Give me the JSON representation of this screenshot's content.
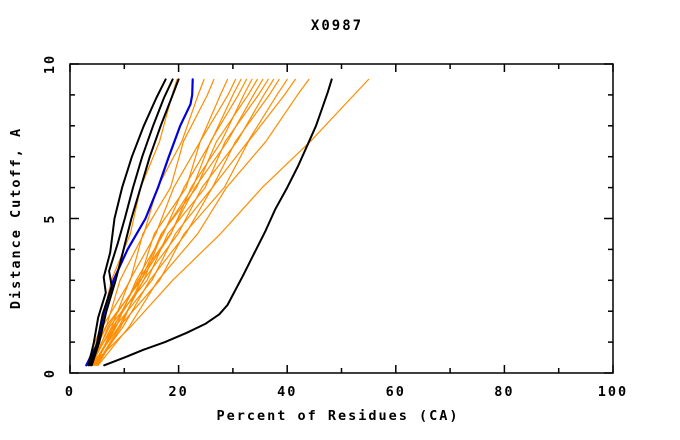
{
  "window": {
    "background": "#ffffff"
  },
  "chart": {
    "title": "X0987",
    "x_axis_label": "Percent of Residues (CA)",
    "y_axis_label": "Distance Cutoff, A"
  },
  "chart_data": {
    "type": "line",
    "title": "X0987",
    "xlabel": "Percent of Residues (CA)",
    "ylabel": "Distance Cutoff, A",
    "xlim": [
      0,
      100
    ],
    "ylim": [
      0,
      10
    ],
    "x_major_ticks": [
      0,
      20,
      40,
      60,
      80,
      100
    ],
    "x_minor_ticks": [
      10,
      30,
      50,
      70,
      90
    ],
    "y_major_ticks": [
      0,
      5,
      10
    ],
    "y_minor_ticks": [
      1,
      2,
      3,
      4,
      6,
      7,
      8,
      9
    ],
    "grid": "off",
    "legend": "none",
    "colors": {
      "black": "#000000",
      "blue": "#0000dd",
      "orange": "#ff8c00",
      "frame": "#000000"
    },
    "series": [
      {
        "name": "orange-01",
        "color": "#ff8c00",
        "width": 1.2,
        "points": [
          [
            3.0,
            0.25
          ],
          [
            5.7,
            1.5
          ],
          [
            7.6,
            3.0
          ],
          [
            11.1,
            4.5
          ],
          [
            13.0,
            6.0
          ],
          [
            16.5,
            7.5
          ],
          [
            18.8,
            9.0
          ],
          [
            19.7,
            9.5
          ]
        ]
      },
      {
        "name": "orange-02",
        "color": "#ff8c00",
        "width": 1.2,
        "points": [
          [
            3.3,
            0.25
          ],
          [
            6.7,
            1.5
          ],
          [
            9.2,
            3.0
          ],
          [
            13.6,
            4.5
          ],
          [
            16.1,
            6.0
          ],
          [
            20.6,
            7.5
          ],
          [
            23.6,
            9.0
          ],
          [
            24.7,
            9.5
          ]
        ]
      },
      {
        "name": "orange-03",
        "color": "#ff8c00",
        "width": 1.2,
        "points": [
          [
            3.6,
            0.25
          ],
          [
            6.0,
            1.5
          ],
          [
            11.1,
            3.0
          ],
          [
            13.4,
            4.5
          ],
          [
            18.5,
            6.0
          ],
          [
            20.9,
            7.5
          ],
          [
            25.3,
            9.0
          ],
          [
            26.5,
            9.5
          ]
        ]
      },
      {
        "name": "orange-04",
        "color": "#ff8c00",
        "width": 1.2,
        "points": [
          [
            3.9,
            0.25
          ],
          [
            7.7,
            1.5
          ],
          [
            11.0,
            3.0
          ],
          [
            15.8,
            4.5
          ],
          [
            19.1,
            6.0
          ],
          [
            24.0,
            7.5
          ],
          [
            27.7,
            9.0
          ],
          [
            29.0,
            9.5
          ]
        ]
      },
      {
        "name": "orange-05",
        "color": "#ff8c00",
        "width": 1.2,
        "points": [
          [
            4.2,
            0.25
          ],
          [
            7.0,
            1.5
          ],
          [
            12.8,
            3.0
          ],
          [
            15.5,
            4.5
          ],
          [
            21.4,
            6.0
          ],
          [
            24.0,
            7.5
          ],
          [
            29.1,
            9.0
          ],
          [
            30.5,
            9.5
          ]
        ]
      },
      {
        "name": "orange-06",
        "color": "#ff8c00",
        "width": 1.2,
        "points": [
          [
            4.5,
            0.25
          ],
          [
            8.5,
            1.5
          ],
          [
            12.2,
            3.0
          ],
          [
            17.2,
            4.5
          ],
          [
            21.0,
            6.0
          ],
          [
            26.0,
            7.5
          ],
          [
            30.0,
            9.0
          ],
          [
            31.5,
            9.5
          ]
        ]
      },
      {
        "name": "orange-07",
        "color": "#ff8c00",
        "width": 1.2,
        "points": [
          [
            4.8,
            0.25
          ],
          [
            7.9,
            1.5
          ],
          [
            13.6,
            3.0
          ],
          [
            16.9,
            4.5
          ],
          [
            22.6,
            6.0
          ],
          [
            25.9,
            7.5
          ],
          [
            31.0,
            9.0
          ],
          [
            32.5,
            9.5
          ]
        ]
      },
      {
        "name": "orange-08",
        "color": "#ff8c00",
        "width": 1.2,
        "points": [
          [
            5.1,
            0.25
          ],
          [
            9.4,
            1.5
          ],
          [
            13.0,
            3.0
          ],
          [
            18.6,
            4.5
          ],
          [
            22.3,
            6.0
          ],
          [
            27.9,
            7.5
          ],
          [
            32.0,
            9.0
          ],
          [
            33.5,
            9.5
          ]
        ]
      },
      {
        "name": "orange-09",
        "color": "#ff8c00",
        "width": 1.2,
        "points": [
          [
            3.1,
            0.25
          ],
          [
            6.6,
            1.5
          ],
          [
            13.1,
            3.0
          ],
          [
            16.8,
            4.5
          ],
          [
            23.3,
            6.0
          ],
          [
            27.0,
            7.5
          ],
          [
            32.8,
            9.0
          ],
          [
            34.5,
            9.5
          ]
        ]
      },
      {
        "name": "orange-10",
        "color": "#ff8c00",
        "width": 1.2,
        "points": [
          [
            3.4,
            0.25
          ],
          [
            8.1,
            1.5
          ],
          [
            12.5,
            3.0
          ],
          [
            18.5,
            4.5
          ],
          [
            23.0,
            6.0
          ],
          [
            29.0,
            7.5
          ],
          [
            33.8,
            9.0
          ],
          [
            35.5,
            9.5
          ]
        ]
      },
      {
        "name": "orange-11",
        "color": "#ff8c00",
        "width": 1.2,
        "points": [
          [
            3.7,
            0.25
          ],
          [
            7.3,
            1.5
          ],
          [
            14.2,
            3.0
          ],
          [
            18.0,
            4.5
          ],
          [
            24.9,
            6.0
          ],
          [
            28.6,
            7.5
          ],
          [
            34.7,
            9.0
          ],
          [
            36.5,
            9.5
          ]
        ]
      },
      {
        "name": "orange-12",
        "color": "#ff8c00",
        "width": 1.2,
        "points": [
          [
            4.0,
            0.25
          ],
          [
            9.0,
            1.5
          ],
          [
            13.5,
            3.0
          ],
          [
            19.9,
            4.5
          ],
          [
            24.3,
            6.0
          ],
          [
            30.8,
            7.5
          ],
          [
            35.7,
            9.0
          ],
          [
            37.5,
            9.5
          ]
        ]
      },
      {
        "name": "orange-13",
        "color": "#ff8c00",
        "width": 1.2,
        "points": [
          [
            4.3,
            0.25
          ],
          [
            8.3,
            1.5
          ],
          [
            15.1,
            3.0
          ],
          [
            19.4,
            4.5
          ],
          [
            26.2,
            6.0
          ],
          [
            30.5,
            7.5
          ],
          [
            36.7,
            9.0
          ],
          [
            38.5,
            9.5
          ]
        ]
      },
      {
        "name": "orange-14",
        "color": "#ff8c00",
        "width": 1.2,
        "points": [
          [
            4.6,
            0.25
          ],
          [
            9.8,
            1.5
          ],
          [
            14.7,
            3.0
          ],
          [
            21.3,
            4.5
          ],
          [
            26.2,
            6.0
          ],
          [
            32.8,
            7.5
          ],
          [
            38.1,
            9.0
          ],
          [
            40.0,
            9.5
          ]
        ]
      },
      {
        "name": "orange-15",
        "color": "#ff8c00",
        "width": 1.2,
        "points": [
          [
            4.9,
            0.25
          ],
          [
            9.1,
            1.5
          ],
          [
            16.5,
            3.0
          ],
          [
            21.0,
            4.5
          ],
          [
            28.4,
            6.0
          ],
          [
            32.9,
            7.5
          ],
          [
            39.5,
            9.0
          ],
          [
            41.5,
            9.5
          ]
        ]
      },
      {
        "name": "orange-16",
        "color": "#ff8c00",
        "width": 1.2,
        "points": [
          [
            5.2,
            0.25
          ],
          [
            10.9,
            1.5
          ],
          [
            16.2,
            3.0
          ],
          [
            23.5,
            4.5
          ],
          [
            28.8,
            6.0
          ],
          [
            36.1,
            7.5
          ],
          [
            41.9,
            9.0
          ],
          [
            44.0,
            9.5
          ]
        ]
      },
      {
        "name": "orange-17",
        "color": "#ff8c00",
        "width": 1.2,
        "points": [
          [
            4.0,
            0.25
          ],
          [
            11.2,
            1.5
          ],
          [
            18.9,
            3.0
          ],
          [
            27.7,
            4.5
          ],
          [
            35.4,
            6.0
          ],
          [
            44.3,
            7.5
          ],
          [
            52.3,
            9.0
          ],
          [
            55.0,
            9.5
          ]
        ]
      },
      {
        "name": "blue-1",
        "color": "#0000dd",
        "width": 2.2,
        "points": [
          [
            3.0,
            0.25
          ],
          [
            5.2,
            1.0
          ],
          [
            6.3,
            2.0
          ],
          [
            8.0,
            3.0
          ],
          [
            10.6,
            4.0
          ],
          [
            13.9,
            5.0
          ],
          [
            16.2,
            6.0
          ],
          [
            18.2,
            7.0
          ],
          [
            20.3,
            8.0
          ],
          [
            22.2,
            8.7
          ],
          [
            22.5,
            9.0
          ],
          [
            22.6,
            9.5
          ]
        ]
      },
      {
        "name": "black-1",
        "color": "#000000",
        "width": 2,
        "points": [
          [
            3.4,
            0.25
          ],
          [
            4.4,
            1.0
          ],
          [
            5.2,
            1.8
          ],
          [
            6.6,
            2.6
          ],
          [
            6.2,
            3.1
          ],
          [
            7.4,
            3.9
          ],
          [
            8.2,
            5.0
          ],
          [
            9.6,
            6.0
          ],
          [
            11.4,
            7.0
          ],
          [
            13.6,
            8.0
          ],
          [
            15.9,
            8.9
          ],
          [
            17.6,
            9.5
          ]
        ]
      },
      {
        "name": "black-2",
        "color": "#000000",
        "width": 2,
        "points": [
          [
            3.7,
            0.25
          ],
          [
            5.0,
            1.0
          ],
          [
            6.0,
            1.9
          ],
          [
            7.7,
            2.8
          ],
          [
            7.2,
            3.3
          ],
          [
            8.8,
            4.2
          ],
          [
            10.1,
            5.0
          ],
          [
            11.6,
            6.0
          ],
          [
            13.3,
            7.0
          ],
          [
            15.3,
            8.0
          ],
          [
            17.3,
            8.9
          ],
          [
            18.9,
            9.5
          ]
        ]
      },
      {
        "name": "black-3",
        "color": "#000000",
        "width": 2,
        "points": [
          [
            4.0,
            0.25
          ],
          [
            5.4,
            1.0
          ],
          [
            6.7,
            2.0
          ],
          [
            8.4,
            3.0
          ],
          [
            9.3,
            3.6
          ],
          [
            10.3,
            4.3
          ],
          [
            11.3,
            5.0
          ],
          [
            13.0,
            6.0
          ],
          [
            14.7,
            7.0
          ],
          [
            16.7,
            8.0
          ],
          [
            18.7,
            8.9
          ],
          [
            20.0,
            9.5
          ]
        ]
      },
      {
        "name": "black-outlier",
        "color": "#000000",
        "width": 2,
        "points": [
          [
            6.3,
            0.25
          ],
          [
            10.0,
            0.5
          ],
          [
            13.5,
            0.75
          ],
          [
            17.5,
            1.0
          ],
          [
            21.5,
            1.3
          ],
          [
            25.0,
            1.6
          ],
          [
            27.5,
            1.9
          ],
          [
            29.0,
            2.2
          ],
          [
            30.5,
            2.7
          ],
          [
            32.0,
            3.2
          ],
          [
            34.0,
            3.9
          ],
          [
            36.0,
            4.6
          ],
          [
            37.8,
            5.3
          ],
          [
            40.0,
            6.0
          ],
          [
            42.0,
            6.7
          ],
          [
            43.8,
            7.4
          ],
          [
            45.3,
            8.0
          ],
          [
            46.5,
            8.6
          ],
          [
            47.5,
            9.1
          ],
          [
            48.2,
            9.5
          ]
        ]
      }
    ]
  }
}
